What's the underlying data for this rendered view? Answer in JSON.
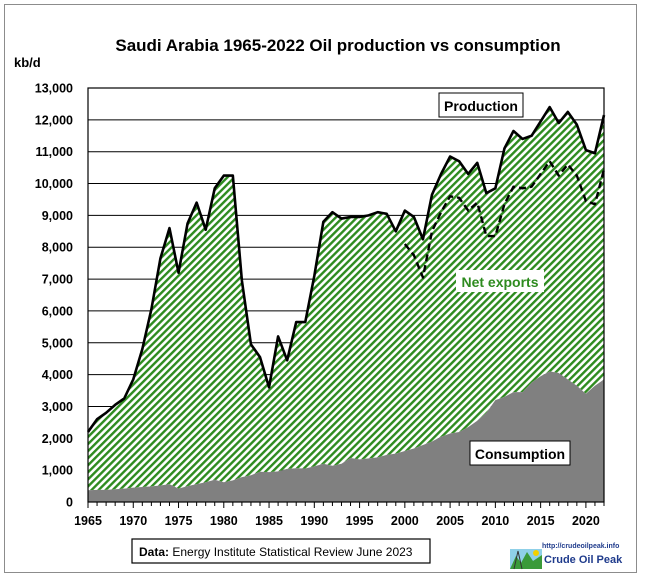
{
  "chart_data": {
    "type": "area",
    "title": "Saudi Arabia 1965-2022 Oil production vs consumption",
    "ylabel": "kb/d",
    "xlabel": "",
    "ylim": [
      0,
      13000
    ],
    "xlim": [
      1965,
      2022
    ],
    "yticks": [
      "0",
      "1,000",
      "2,000",
      "3,000",
      "4,000",
      "5,000",
      "6,000",
      "7,000",
      "8,000",
      "9,000",
      "10,000",
      "11,000",
      "12,000",
      "13,000"
    ],
    "xticks": [
      "1965",
      "1970",
      "1975",
      "1980",
      "1985",
      "1990",
      "1995",
      "2000",
      "2005",
      "2010",
      "2015",
      "2020"
    ],
    "grid": true,
    "x": [
      1965,
      1966,
      1967,
      1968,
      1969,
      1970,
      1971,
      1972,
      1973,
      1974,
      1975,
      1976,
      1977,
      1978,
      1979,
      1980,
      1981,
      1982,
      1983,
      1984,
      1985,
      1986,
      1987,
      1988,
      1989,
      1990,
      1991,
      1992,
      1993,
      1994,
      1995,
      1996,
      1997,
      1998,
      1999,
      2000,
      2001,
      2002,
      2003,
      2004,
      2005,
      2006,
      2007,
      2008,
      2009,
      2010,
      2011,
      2012,
      2013,
      2014,
      2015,
      2016,
      2017,
      2018,
      2019,
      2020,
      2021,
      2022
    ],
    "series": [
      {
        "name": "Production",
        "values": [
          2200,
          2600,
          2800,
          3050,
          3250,
          3850,
          4800,
          6050,
          7650,
          8600,
          7200,
          8750,
          9400,
          8550,
          9850,
          10250,
          10250,
          6950,
          4950,
          4550,
          3600,
          5200,
          4450,
          5650,
          5650,
          7100,
          8800,
          9100,
          8900,
          8950,
          8950,
          9000,
          9100,
          9050,
          8500,
          9150,
          8950,
          8250,
          9650,
          10300,
          10850,
          10700,
          10300,
          10650,
          9700,
          9850,
          11100,
          11650,
          11400,
          11500,
          11950,
          12400,
          11900,
          12250,
          11850,
          11050,
          10950,
          12150
        ]
      },
      {
        "name": "Consumption",
        "values": [
          370,
          380,
          380,
          400,
          420,
          450,
          470,
          490,
          520,
          560,
          420,
          500,
          560,
          620,
          700,
          620,
          680,
          780,
          840,
          950,
          940,
          960,
          1040,
          1060,
          1050,
          1120,
          1200,
          1140,
          1200,
          1380,
          1340,
          1370,
          1400,
          1480,
          1520,
          1600,
          1680,
          1790,
          1900,
          2050,
          2150,
          2200,
          2350,
          2550,
          2800,
          3200,
          3300,
          3450,
          3450,
          3750,
          3950,
          4100,
          4050,
          3850,
          3650,
          3400,
          3650,
          3850
        ]
      },
      {
        "name": "",
        "style": "dashed",
        "x": [
          2000,
          2001,
          2002,
          2003,
          2004,
          2005,
          2006,
          2007,
          2008,
          2009,
          2010,
          2011,
          2012,
          2013,
          2014,
          2015,
          2016,
          2017,
          2018,
          2019,
          2020,
          2021,
          2022
        ],
        "values": [
          8100,
          7750,
          7050,
          8500,
          9100,
          9600,
          9550,
          9150,
          9400,
          8350,
          8350,
          9350,
          9900,
          9850,
          9900,
          10300,
          10700,
          10250,
          10600,
          10250,
          9450,
          9350,
          10450
        ]
      }
    ],
    "annotations": [
      "Production",
      "Net exports",
      "Consumption"
    ]
  },
  "colors": {
    "consumption_fill": "#808080",
    "net_exports_hatch": "#2e8b1f",
    "net_exports_label": "#2e8b1f",
    "line": "#000000"
  },
  "source": {
    "prefix": "Data:",
    "text": " Energy Institute Statistical Review June 2023"
  },
  "logo": {
    "url": "http://crudeoilpeak.info",
    "name": "Crude Oil Peak",
    "icon": "oil-well-landscape-icon"
  }
}
